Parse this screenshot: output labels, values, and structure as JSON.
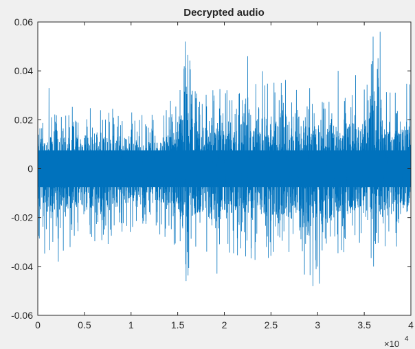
{
  "chart_data": {
    "type": "line",
    "title": "Decrypted audio",
    "xlabel": "",
    "ylabel": "",
    "xlim": [
      0,
      40000
    ],
    "ylim": [
      -0.06,
      0.06
    ],
    "x_exponent_label": "×10",
    "x_exponent": "4",
    "grid": false,
    "x_ticks": [
      {
        "value": 0,
        "label": "0"
      },
      {
        "value": 5000,
        "label": "0.5"
      },
      {
        "value": 10000,
        "label": "1"
      },
      {
        "value": 15000,
        "label": "1.5"
      },
      {
        "value": 20000,
        "label": "2"
      },
      {
        "value": 25000,
        "label": "2.5"
      },
      {
        "value": 30000,
        "label": "3"
      },
      {
        "value": 35000,
        "label": "3.5"
      },
      {
        "value": 40000,
        "label": "4"
      }
    ],
    "y_ticks": [
      {
        "value": -0.06,
        "label": "-0.06"
      },
      {
        "value": -0.04,
        "label": "-0.04"
      },
      {
        "value": -0.02,
        "label": "-0.02"
      },
      {
        "value": 0,
        "label": "0"
      },
      {
        "value": 0.02,
        "label": "0.02"
      },
      {
        "value": 0.04,
        "label": "0.04"
      },
      {
        "value": 0.06,
        "label": "0.06"
      }
    ],
    "series": [
      {
        "color": "#0072bd",
        "n_samples": 40000,
        "envelope": {
          "x": [
            0,
            2000,
            4000,
            6000,
            8000,
            10000,
            12000,
            13500,
            15000,
            16000,
            17000,
            18000,
            19000,
            20000,
            21000,
            22000,
            23000,
            24000,
            25000,
            26000,
            27000,
            28000,
            29000,
            30000,
            31000,
            32000,
            33000,
            34000,
            35000,
            36000,
            37000,
            38000,
            39000,
            40000
          ],
          "upper": [
            0.03,
            0.028,
            0.026,
            0.026,
            0.025,
            0.024,
            0.023,
            0.024,
            0.035,
            0.052,
            0.033,
            0.035,
            0.036,
            0.038,
            0.032,
            0.043,
            0.033,
            0.045,
            0.04,
            0.038,
            0.036,
            0.034,
            0.038,
            0.032,
            0.034,
            0.03,
            0.036,
            0.04,
            0.033,
            0.056,
            0.035,
            0.032,
            0.034,
            0.036
          ],
          "lower": [
            -0.033,
            -0.038,
            -0.03,
            -0.036,
            -0.032,
            -0.026,
            -0.027,
            -0.03,
            -0.032,
            -0.046,
            -0.04,
            -0.037,
            -0.044,
            -0.04,
            -0.036,
            -0.035,
            -0.039,
            -0.041,
            -0.038,
            -0.04,
            -0.044,
            -0.038,
            -0.048,
            -0.042,
            -0.046,
            -0.04,
            -0.036,
            -0.034,
            -0.038,
            -0.04,
            -0.036,
            -0.032,
            -0.032,
            -0.034
          ]
        },
        "peaks": [
          {
            "x": 1200,
            "y": 0.033
          },
          {
            "x": 2200,
            "y": -0.038
          },
          {
            "x": 15800,
            "y": 0.052
          },
          {
            "x": 15900,
            "y": -0.046
          },
          {
            "x": 22500,
            "y": 0.046
          },
          {
            "x": 29500,
            "y": -0.048
          },
          {
            "x": 30200,
            "y": -0.047
          },
          {
            "x": 32200,
            "y": 0.04
          },
          {
            "x": 36700,
            "y": 0.056
          },
          {
            "x": 36000,
            "y": -0.04
          }
        ]
      }
    ]
  }
}
